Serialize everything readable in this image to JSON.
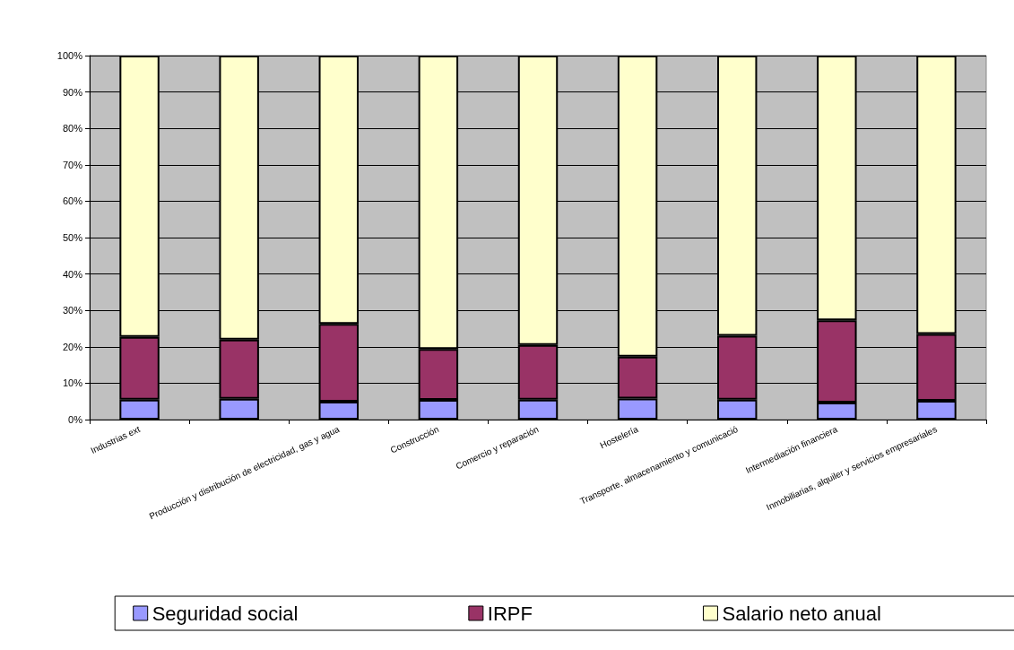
{
  "chart_data": {
    "type": "bar",
    "stacked": true,
    "categories": [
      "Industrias ext",
      null,
      "Producción y distribución de electricidad, gas y agua",
      "Construcción",
      "Comercio y reparación",
      "Hostelería",
      "Transporte, almacenamiento y comunicació",
      "Intermediación financiera",
      "Inmobiliarias, alquiler y servicios empresariales"
    ],
    "series": [
      {
        "name": "Seguridad social",
        "color": "#9999ff",
        "values": [
          5.5,
          5.7,
          4.9,
          5.4,
          5.5,
          5.8,
          5.5,
          4.7,
          5.2
        ]
      },
      {
        "name": "IRPF",
        "color": "#993366",
        "values": [
          17.2,
          16.3,
          21.4,
          14.0,
          15.0,
          11.5,
          17.5,
          22.6,
          18.3
        ]
      },
      {
        "name": "Salario neto anual",
        "color": "#ffffcc",
        "values": [
          77.3,
          78.0,
          73.7,
          80.6,
          79.5,
          82.7,
          77.0,
          72.7,
          76.5
        ]
      }
    ],
    "ylim": [
      0,
      100
    ],
    "yticks": [
      {
        "value": 0,
        "label": "0%"
      },
      {
        "value": 10,
        "label": "10%"
      },
      {
        "value": 20,
        "label": "20%"
      },
      {
        "value": 30,
        "label": "30%"
      },
      {
        "value": 40,
        "label": "40%"
      },
      {
        "value": 50,
        "label": "50%"
      },
      {
        "value": 60,
        "label": "60%"
      },
      {
        "value": 70,
        "label": "70%"
      },
      {
        "value": 80,
        "label": "80%"
      },
      {
        "value": 90,
        "label": "90%"
      },
      {
        "value": 100,
        "label": "100%"
      }
    ],
    "grid": "y",
    "legend": "bottom"
  }
}
